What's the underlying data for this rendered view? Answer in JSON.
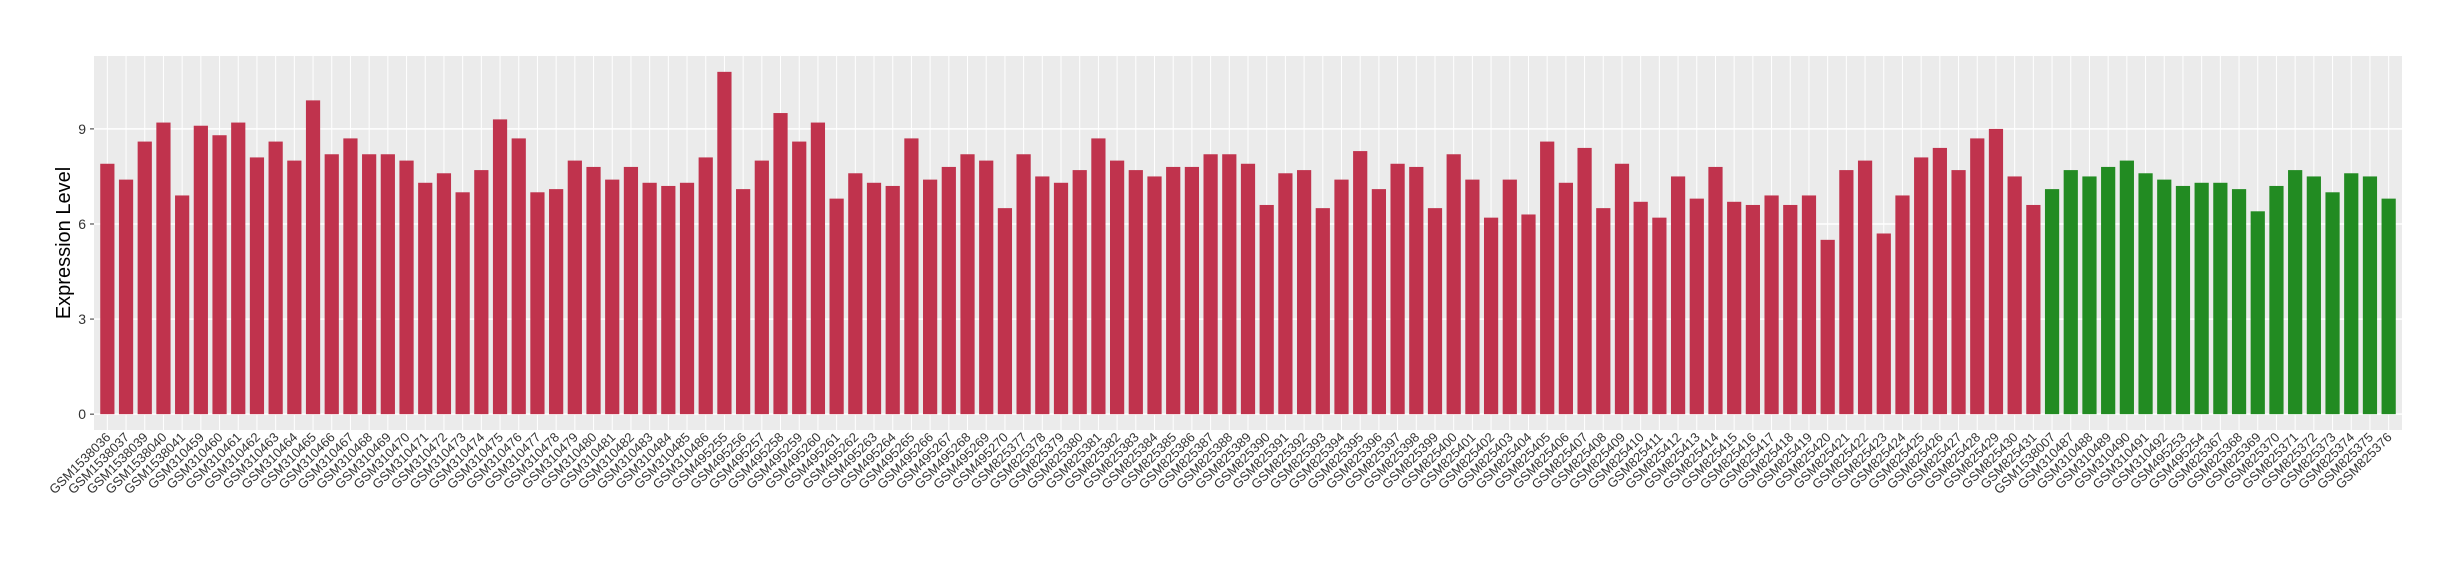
{
  "chart_data": {
    "type": "bar",
    "y_label": "Expression Level",
    "categories": [
      "GSM1538036",
      "GSM1538037",
      "GSM1538039",
      "GSM1538040",
      "GSM1538041",
      "GSM310459",
      "GSM310460",
      "GSM310461",
      "GSM310462",
      "GSM310463",
      "GSM310464",
      "GSM310465",
      "GSM310466",
      "GSM310467",
      "GSM310468",
      "GSM310469",
      "GSM310470",
      "GSM310471",
      "GSM310472",
      "GSM310473",
      "GSM310474",
      "GSM310475",
      "GSM310476",
      "GSM310477",
      "GSM310478",
      "GSM310479",
      "GSM310480",
      "GSM310481",
      "GSM310482",
      "GSM310483",
      "GSM310484",
      "GSM310485",
      "GSM310486",
      "GSM495255",
      "GSM495256",
      "GSM495257",
      "GSM495258",
      "GSM495259",
      "GSM495260",
      "GSM495261",
      "GSM495262",
      "GSM495263",
      "GSM495264",
      "GSM495265",
      "GSM495266",
      "GSM495267",
      "GSM495268",
      "GSM495269",
      "GSM495270",
      "GSM825377",
      "GSM825378",
      "GSM825379",
      "GSM825380",
      "GSM825381",
      "GSM825382",
      "GSM825383",
      "GSM825384",
      "GSM825385",
      "GSM825386",
      "GSM825387",
      "GSM825388",
      "GSM825389",
      "GSM825390",
      "GSM825391",
      "GSM825392",
      "GSM825393",
      "GSM825394",
      "GSM825395",
      "GSM825396",
      "GSM825397",
      "GSM825398",
      "GSM825399",
      "GSM825400",
      "GSM825401",
      "GSM825402",
      "GSM825403",
      "GSM825404",
      "GSM825405",
      "GSM825406",
      "GSM825407",
      "GSM825408",
      "GSM825409",
      "GSM825410",
      "GSM825411",
      "GSM825412",
      "GSM825413",
      "GSM825414",
      "GSM825415",
      "GSM825416",
      "GSM825417",
      "GSM825418",
      "GSM825419",
      "GSM825420",
      "GSM825421",
      "GSM825422",
      "GSM825423",
      "GSM825424",
      "GSM825425",
      "GSM825426",
      "GSM825427",
      "GSM825428",
      "GSM825429",
      "GSM825430",
      "GSM825431",
      "GSM1538007",
      "GSM310487",
      "GSM310488",
      "GSM310489",
      "GSM310490",
      "GSM310491",
      "GSM310492",
      "GSM495253",
      "GSM495254",
      "GSM825367",
      "GSM825368",
      "GSM825369",
      "GSM825370",
      "GSM825371",
      "GSM825372",
      "GSM825373",
      "GSM825374",
      "GSM825375",
      "GSM825376"
    ],
    "values": [
      7.9,
      7.4,
      8.6,
      9.2,
      6.9,
      9.1,
      8.8,
      9.2,
      8.1,
      8.6,
      8.0,
      9.9,
      8.2,
      8.7,
      8.2,
      8.2,
      8.0,
      7.3,
      7.6,
      7.0,
      7.7,
      9.3,
      8.7,
      7.0,
      7.1,
      8.0,
      7.8,
      7.4,
      7.8,
      7.3,
      7.2,
      7.3,
      8.1,
      10.8,
      7.1,
      8.0,
      9.5,
      8.6,
      9.2,
      6.8,
      7.6,
      7.3,
      7.2,
      8.7,
      7.4,
      7.8,
      8.2,
      8.0,
      6.5,
      8.2,
      7.5,
      7.3,
      7.7,
      8.7,
      8.0,
      7.7,
      7.5,
      7.8,
      7.8,
      8.2,
      8.2,
      7.9,
      6.6,
      7.6,
      7.7,
      6.5,
      7.4,
      8.3,
      7.1,
      7.9,
      7.8,
      6.5,
      8.2,
      7.4,
      6.2,
      7.4,
      6.3,
      8.6,
      7.3,
      8.4,
      6.5,
      7.9,
      6.7,
      6.2,
      7.5,
      6.8,
      7.8,
      6.7,
      6.6,
      6.9,
      6.6,
      6.9,
      5.5,
      7.7,
      8.0,
      5.7,
      6.9,
      8.1,
      8.4,
      7.7,
      8.7,
      9.0,
      7.5,
      6.6,
      7.1,
      7.7,
      7.5,
      7.8,
      8.0,
      7.6,
      7.4,
      7.2,
      7.3,
      7.3,
      7.1,
      6.4,
      7.2,
      7.7,
      7.5,
      7.0,
      7.6,
      7.5,
      6.8
    ],
    "colors": [
      "#c0334d",
      "#c0334d",
      "#c0334d",
      "#c0334d",
      "#c0334d",
      "#c0334d",
      "#c0334d",
      "#c0334d",
      "#c0334d",
      "#c0334d",
      "#c0334d",
      "#c0334d",
      "#c0334d",
      "#c0334d",
      "#c0334d",
      "#c0334d",
      "#c0334d",
      "#c0334d",
      "#c0334d",
      "#c0334d",
      "#c0334d",
      "#c0334d",
      "#c0334d",
      "#c0334d",
      "#c0334d",
      "#c0334d",
      "#c0334d",
      "#c0334d",
      "#c0334d",
      "#c0334d",
      "#c0334d",
      "#c0334d",
      "#c0334d",
      "#c0334d",
      "#c0334d",
      "#c0334d",
      "#c0334d",
      "#c0334d",
      "#c0334d",
      "#c0334d",
      "#c0334d",
      "#c0334d",
      "#c0334d",
      "#c0334d",
      "#c0334d",
      "#c0334d",
      "#c0334d",
      "#c0334d",
      "#c0334d",
      "#c0334d",
      "#c0334d",
      "#c0334d",
      "#c0334d",
      "#c0334d",
      "#c0334d",
      "#c0334d",
      "#c0334d",
      "#c0334d",
      "#c0334d",
      "#c0334d",
      "#c0334d",
      "#c0334d",
      "#c0334d",
      "#c0334d",
      "#c0334d",
      "#c0334d",
      "#c0334d",
      "#c0334d",
      "#c0334d",
      "#c0334d",
      "#c0334d",
      "#c0334d",
      "#c0334d",
      "#c0334d",
      "#c0334d",
      "#c0334d",
      "#c0334d",
      "#c0334d",
      "#c0334d",
      "#c0334d",
      "#c0334d",
      "#c0334d",
      "#c0334d",
      "#c0334d",
      "#c0334d",
      "#c0334d",
      "#c0334d",
      "#c0334d",
      "#c0334d",
      "#c0334d",
      "#c0334d",
      "#c0334d",
      "#c0334d",
      "#c0334d",
      "#c0334d",
      "#c0334d",
      "#c0334d",
      "#c0334d",
      "#c0334d",
      "#c0334d",
      "#c0334d",
      "#c0334d",
      "#c0334d",
      "#c0334d",
      "#228b22",
      "#228b22",
      "#228b22",
      "#228b22",
      "#228b22",
      "#228b22",
      "#228b22",
      "#228b22",
      "#228b22",
      "#228b22",
      "#228b22",
      "#228b22",
      "#228b22",
      "#228b22",
      "#228b22",
      "#228b22",
      "#228b22",
      "#228b22",
      "#228b22"
    ],
    "ylim": [
      -0.5,
      11.3
    ],
    "yticks": [
      0,
      3,
      6,
      9
    ],
    "grid": true
  }
}
